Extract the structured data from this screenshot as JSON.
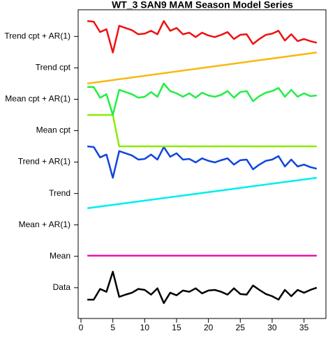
{
  "chart_data": {
    "type": "line",
    "title": "WT_3 SAN9 MAM Season Model Series",
    "x": [
      1,
      2,
      3,
      4,
      5,
      6,
      7,
      8,
      9,
      10,
      11,
      12,
      13,
      14,
      15,
      16,
      17,
      18,
      19,
      20,
      21,
      22,
      23,
      24,
      25,
      26,
      27,
      28,
      29,
      30,
      31,
      32,
      33,
      34,
      35,
      36,
      37
    ],
    "xlim": [
      -0.44,
      38.44
    ],
    "xticks": [
      0,
      5,
      10,
      15,
      20,
      25,
      30,
      35
    ],
    "ylim": [
      0.02,
      9.85
    ],
    "yticks": [
      {
        "value": 1,
        "label": "Data"
      },
      {
        "value": 2,
        "label": "Mean"
      },
      {
        "value": 3,
        "label": "Mean + AR(1)"
      },
      {
        "value": 4,
        "label": "Trend"
      },
      {
        "value": 5,
        "label": "Trend + AR(1)"
      },
      {
        "value": 6,
        "label": "Mean cpt"
      },
      {
        "value": 7,
        "label": "Mean cpt + AR(1)"
      },
      {
        "value": 8,
        "label": "Trend cpt"
      },
      {
        "value": 9,
        "label": "Trend cpt + AR(1)"
      }
    ],
    "series": [
      {
        "color": "#000000",
        "values": [
          0.62,
          0.62,
          0.96,
          0.87,
          1.51,
          0.71,
          0.78,
          0.84,
          0.96,
          0.93,
          0.78,
          0.98,
          0.51,
          0.84,
          0.76,
          0.91,
          0.87,
          0.98,
          0.82,
          0.91,
          0.93,
          0.87,
          0.78,
          0.98,
          0.8,
          0.78,
          1.07,
          0.93,
          0.8,
          0.73,
          0.62,
          0.93,
          0.73,
          0.93,
          0.84,
          0.93,
          1.0
        ]
      },
      {
        "color": "#ee11aa",
        "x": [
          1,
          37
        ],
        "values": [
          2.02,
          2.02
        ]
      },
      {
        "color": "#00eeee",
        "x": [
          1,
          37
        ],
        "values": [
          3.53,
          4.5
        ]
      },
      {
        "color": "#1144dd",
        "values": [
          5.5,
          5.48,
          5.15,
          5.24,
          4.5,
          5.35,
          5.28,
          5.21,
          5.08,
          5.1,
          5.24,
          5.08,
          5.48,
          5.17,
          5.28,
          5.08,
          5.1,
          4.99,
          5.12,
          5.04,
          4.99,
          5.06,
          5.12,
          4.92,
          5.06,
          5.08,
          4.77,
          4.92,
          5.04,
          5.08,
          5.19,
          4.86,
          5.08,
          4.86,
          4.92,
          4.84,
          4.79
        ]
      },
      {
        "color": "#88ee00",
        "values": [
          6.5,
          6.5,
          6.5,
          6.5,
          6.5,
          5.5,
          5.5,
          5.5,
          5.5,
          5.5,
          5.5,
          5.5,
          5.5,
          5.5,
          5.5,
          5.5,
          5.5,
          5.5,
          5.5,
          5.5,
          5.5,
          5.5,
          5.5,
          5.5,
          5.5,
          5.5,
          5.5,
          5.5,
          5.5,
          5.5,
          5.5,
          5.5,
          5.5,
          5.5,
          5.5,
          5.5,
          5.5
        ]
      },
      {
        "color": "#22ee44",
        "values": [
          7.39,
          7.39,
          7.05,
          7.16,
          6.5,
          7.3,
          7.23,
          7.16,
          7.05,
          7.08,
          7.23,
          7.08,
          7.5,
          7.26,
          7.19,
          7.08,
          7.19,
          7.05,
          7.21,
          7.12,
          7.08,
          7.14,
          7.26,
          7.05,
          7.23,
          7.26,
          6.94,
          7.1,
          7.21,
          7.26,
          7.36,
          7.08,
          7.3,
          7.08,
          7.19,
          7.1,
          7.12
        ]
      },
      {
        "color": "#f9b80f",
        "x": [
          1,
          37
        ],
        "values": [
          7.5,
          8.49
        ]
      },
      {
        "color": "#ee1111",
        "values": [
          9.49,
          9.47,
          9.14,
          9.23,
          8.49,
          9.34,
          9.27,
          9.2,
          9.07,
          9.09,
          9.18,
          9.07,
          9.49,
          9.18,
          9.27,
          9.07,
          9.12,
          8.98,
          9.12,
          9.03,
          8.98,
          9.05,
          9.14,
          8.92,
          9.05,
          9.07,
          8.76,
          8.92,
          9.05,
          9.09,
          9.18,
          8.87,
          9.07,
          8.85,
          8.92,
          8.85,
          8.8
        ]
      }
    ]
  }
}
